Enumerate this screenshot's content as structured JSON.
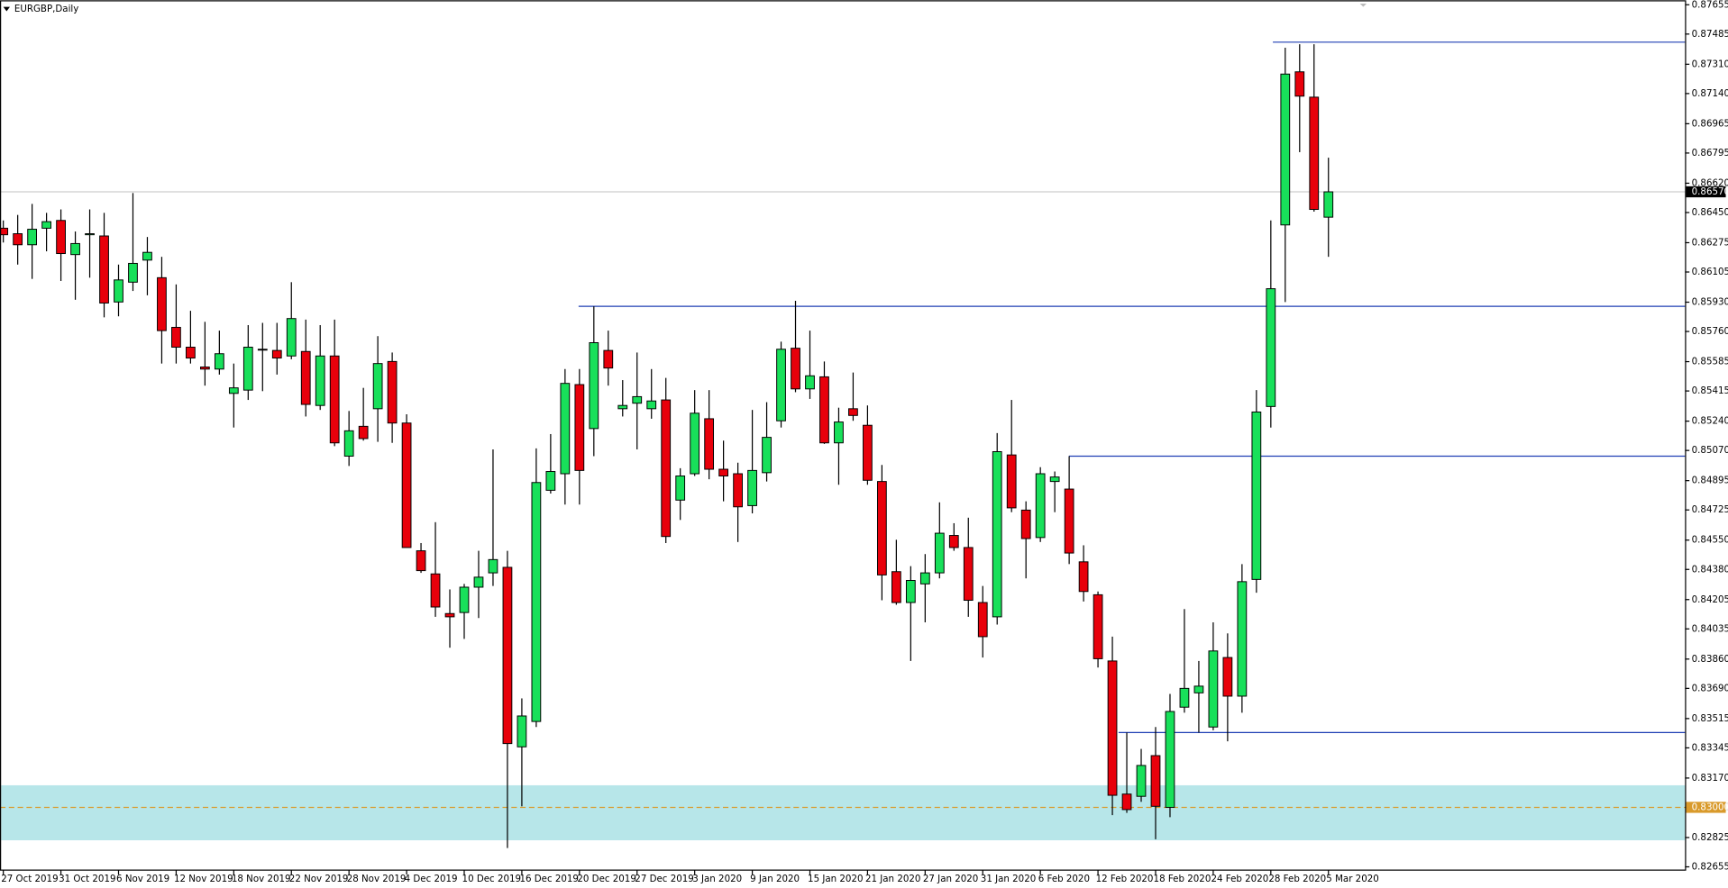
{
  "chart_data": {
    "type": "candlestick",
    "title": "EURGBP,Daily",
    "categories": [
      "27 Oct 2019",
      null,
      null,
      null,
      "31 Oct 2019",
      null,
      null,
      null,
      "6 Nov 2019",
      null,
      null,
      null,
      "12 Nov 2019",
      null,
      null,
      null,
      "18 Nov 2019",
      null,
      null,
      null,
      "22 Nov 2019",
      null,
      null,
      null,
      "28 Nov 2019",
      null,
      null,
      null,
      "4 Dec 2019",
      null,
      null,
      null,
      "10 Dec 2019",
      null,
      null,
      null,
      "16 Dec 2019",
      null,
      null,
      null,
      "20 Dec 2019",
      null,
      null,
      null,
      "27 Dec 2019",
      null,
      null,
      null,
      "3 Jan 2020",
      null,
      null,
      null,
      "9 Jan 2020",
      null,
      null,
      null,
      "15 Jan 2020",
      null,
      null,
      null,
      "21 Jan 2020",
      null,
      null,
      null,
      "27 Jan 2020",
      null,
      null,
      null,
      "31 Jan 2020",
      null,
      null,
      null,
      "6 Feb 2020",
      null,
      null,
      null,
      "12 Feb 2020",
      null,
      null,
      null,
      "18 Feb 2020",
      null,
      null,
      null,
      "24 Feb 2020",
      null,
      null,
      null,
      "28 Feb 2020",
      null,
      null,
      null,
      "5 Mar 2020"
    ],
    "open": [
      0.86359,
      0.86327,
      0.86263,
      0.86359,
      0.86404,
      0.86206,
      0.86321,
      0.86314,
      0.85931,
      0.86046,
      0.86174,
      0.86072,
      0.85784,
      0.85669,
      0.85554,
      0.85542,
      0.85401,
      0.8542,
      0.85657,
      0.8565,
      0.85618,
      0.85644,
      0.85331,
      0.85618,
      0.85037,
      0.8521,
      0.85312,
      0.85586,
      0.85229,
      0.84488,
      0.84354,
      0.84124,
      0.8413,
      0.84277,
      0.8436,
      0.84392,
      0.83351,
      0.83498,
      0.84839,
      0.84935,
      0.85452,
      0.85197,
      0.8565,
      0.85312,
      0.85344,
      0.85312,
      0.85363,
      0.84782,
      0.84935,
      0.85254,
      0.84961,
      0.84935,
      0.8475,
      0.84941,
      0.85242,
      0.85663,
      0.85427,
      0.85497,
      0.85114,
      0.85312,
      0.85216,
      0.8489,
      0.84367,
      0.84188,
      0.84296,
      0.8436,
      0.84577,
      0.84507,
      0.84188,
      0.84105,
      0.85044,
      0.84724,
      0.84565,
      0.8489,
      0.84846,
      0.84424,
      0.84233,
      0.83849,
      0.83077,
      0.83064,
      0.833,
      0.83,
      0.83581,
      0.83664,
      0.83466,
      0.83869,
      0.83645,
      0.84322,
      0.85325,
      0.86378,
      0.87266,
      0.87119,
      0.86423
    ],
    "high": [
      0.86404,
      0.86436,
      0.865,
      0.86448,
      0.86468,
      0.8634,
      0.86468,
      0.86448,
      0.86148,
      0.86563,
      0.86308,
      0.86193,
      0.86033,
      0.8588,
      0.85816,
      0.85765,
      0.85574,
      0.85797,
      0.8581,
      0.8581,
      0.86046,
      0.85829,
      0.85797,
      0.85829,
      0.85299,
      0.85433,
      0.85733,
      0.85638,
      0.8528,
      0.84533,
      0.84654,
      0.84264,
      0.84296,
      0.84488,
      0.85076,
      0.84488,
      0.83632,
      0.85082,
      0.85165,
      0.85542,
      0.85542,
      0.85906,
      0.85765,
      0.85478,
      0.85638,
      0.85542,
      0.85491,
      0.84967,
      0.8542,
      0.8542,
      0.85127,
      0.84999,
      0.85305,
      0.8535,
      0.85701,
      0.85938,
      0.85765,
      0.85586,
      0.85318,
      0.85522,
      0.85331,
      0.84986,
      0.84552,
      0.84399,
      0.84469,
      0.84769,
      0.84648,
      0.8468,
      0.84284,
      0.85171,
      0.85363,
      0.84775,
      0.84973,
      0.84948,
      0.85037,
      0.8452,
      0.84252,
      0.8399,
      0.83434,
      0.83339,
      0.83466,
      0.83658,
      0.8415,
      0.83849,
      0.84073,
      0.84009,
      0.84411,
      0.8542,
      0.86404,
      0.87406,
      0.87426,
      0.87426,
      0.86768
    ],
    "low": [
      0.86276,
      0.86148,
      0.86065,
      0.86225,
      0.86053,
      0.85944,
      0.86072,
      0.85842,
      0.85848,
      0.85995,
      0.8597,
      0.85574,
      0.85574,
      0.85574,
      0.85446,
      0.8551,
      0.85203,
      0.85363,
      0.85414,
      0.8551,
      0.85599,
      0.85267,
      0.85305,
      0.85095,
      0.8498,
      0.85127,
      0.8512,
      0.85114,
      0.84507,
      0.8436,
      0.84105,
      0.83926,
      0.83977,
      0.84098,
      0.84284,
      0.82764,
      0.83006,
      0.83466,
      0.8482,
      0.84756,
      0.84756,
      0.85037,
      0.85446,
      0.85267,
      0.85076,
      0.85254,
      0.84533,
      0.84667,
      0.84922,
      0.84903,
      0.84775,
      0.84539,
      0.84705,
      0.8489,
      0.85203,
      0.85408,
      0.85369,
      0.85108,
      0.84871,
      0.85242,
      0.84871,
      0.84201,
      0.84175,
      0.83849,
      0.84073,
      0.84328,
      0.84488,
      0.84105,
      0.83869,
      0.8406,
      0.84712,
      0.84328,
      0.84539,
      0.84712,
      0.84411,
      0.84194,
      0.83811,
      0.82955,
      0.82968,
      0.83032,
      0.82815,
      0.82943,
      0.83549,
      0.83434,
      0.83447,
      0.83383,
      0.83549,
      0.84245,
      0.85203,
      0.85931,
      0.868,
      0.86455,
      0.86193
    ],
    "close": [
      0.86321,
      0.86263,
      0.86353,
      0.86397,
      0.86212,
      0.8627,
      0.86327,
      0.85925,
      0.86059,
      0.86155,
      0.86219,
      0.85765,
      0.85669,
      0.85606,
      0.85542,
      0.85631,
      0.85433,
      0.85669,
      0.85657,
      0.85606,
      0.85835,
      0.85337,
      0.85618,
      0.85114,
      0.85184,
      0.85139,
      0.85574,
      0.85229,
      0.84507,
      0.84373,
      0.84162,
      0.84105,
      0.84277,
      0.84335,
      0.84437,
      0.8337,
      0.8353,
      0.84884,
      0.84948,
      0.85459,
      0.84954,
      0.85695,
      0.85548,
      0.85331,
      0.85382,
      0.85357,
      0.84571,
      0.84922,
      0.85286,
      0.84961,
      0.84922,
      0.84743,
      0.84954,
      0.85146,
      0.85657,
      0.85427,
      0.85503,
      0.85114,
      0.85235,
      0.85273,
      0.84897,
      0.84348,
      0.84188,
      0.84316,
      0.8436,
      0.8459,
      0.84507,
      0.84201,
      0.8399,
      0.85063,
      0.84737,
      0.84559,
      0.84935,
      0.84916,
      0.84475,
      0.84252,
      0.83862,
      0.8307,
      0.82987,
      0.83243,
      0.83006,
      0.83556,
      0.8369,
      0.83703,
      0.83907,
      0.83645,
      0.84309,
      0.85293,
      0.86008,
      0.87253,
      0.87125,
      0.86468,
      0.8657
    ],
    "up_color": "#18e05a",
    "down_color": "#e8000b",
    "ylim": [
      0.82636,
      0.87681
    ],
    "yticks": [
      0.87655,
      0.87485,
      {
        "value": 0.8731,
        "label": "0.87310"
      },
      {
        "value": 0.8714,
        "label": "0.87140"
      },
      0.86965,
      0.86795,
      {
        "value": 0.8662,
        "label": "0.86620"
      },
      {
        "value": 0.8645,
        "label": "0.86450"
      },
      0.86275,
      0.86105,
      {
        "value": 0.8593,
        "label": "0.85930"
      },
      {
        "value": 0.8576,
        "label": "0.85760"
      },
      0.85585,
      0.85415,
      {
        "value": 0.8524,
        "label": "0.85240"
      },
      {
        "value": 0.8507,
        "label": "0.85070"
      },
      0.84895,
      0.84725,
      {
        "value": 0.8455,
        "label": "0.84550"
      },
      {
        "value": 0.8438,
        "label": "0.84380"
      },
      0.84205,
      0.84035,
      {
        "value": 0.8386,
        "label": "0.83860"
      },
      {
        "value": 0.8369,
        "label": "0.83690"
      },
      0.83515,
      0.83345,
      {
        "value": 0.8317,
        "label": "0.83170"
      },
      {
        "value": 0.83,
        "label": "0.83000"
      },
      0.82825,
      0.82655
    ],
    "current_price": {
      "value": 0.8657,
      "label": "0.86570"
    },
    "levels": [
      {
        "value": 0.87438,
        "color": "#1f3fb4"
      },
      {
        "value": 0.85906,
        "color": "#1f3fb4"
      },
      {
        "value": 0.85037,
        "color": "#1f3fb4"
      },
      {
        "value": 0.83434,
        "color": "#1f3fb4"
      }
    ],
    "support_line": {
      "value": 0.83,
      "label": "0.83000",
      "color": "#d99a2b"
    },
    "zone": {
      "range": [
        0.82809,
        0.83128
      ],
      "color": "#b7e6e9"
    }
  }
}
